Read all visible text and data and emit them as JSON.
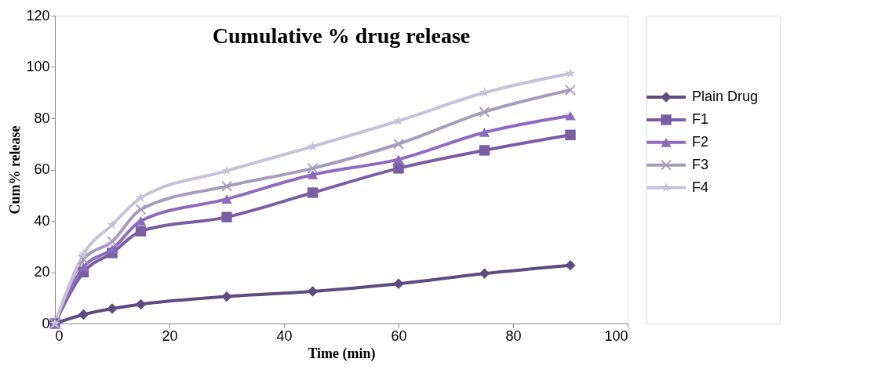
{
  "chart_data": {
    "type": "line",
    "title": "Cumulative % drug release",
    "xlabel": "Time (min)",
    "ylabel": "Cum% release",
    "x": [
      0,
      5,
      10,
      15,
      30,
      45,
      60,
      75,
      90
    ],
    "series": [
      {
        "name": "Plain Drug",
        "color": "#5e4b80",
        "marker": "diamond",
        "values": [
          0,
          3.5,
          5.8,
          7.5,
          10.5,
          12.5,
          15.5,
          19.5,
          22.7
        ]
      },
      {
        "name": "F1",
        "color": "#7a5ea3",
        "marker": "square",
        "values": [
          0,
          20,
          27.5,
          36,
          41.5,
          51,
          60.5,
          67.5,
          73.5
        ]
      },
      {
        "name": "F2",
        "color": "#8d6cc0",
        "marker": "triangle",
        "values": [
          0,
          22,
          29,
          40,
          48.5,
          58,
          64,
          74.5,
          81
        ]
      },
      {
        "name": "F3",
        "color": "#a69cbc",
        "marker": "cross",
        "values": [
          0,
          25,
          32,
          44.5,
          53.5,
          60.5,
          70,
          82.5,
          91
        ]
      },
      {
        "name": "F4",
        "color": "#c8c2d9",
        "marker": "star",
        "values": [
          0,
          27,
          38.5,
          49,
          59.5,
          69,
          79,
          90,
          97.5
        ]
      }
    ],
    "xlim": [
      0,
      100
    ],
    "xticks": [
      0,
      20,
      40,
      60,
      80,
      100
    ],
    "ylim": [
      0,
      120
    ],
    "yticks": [
      0,
      20,
      40,
      60,
      80,
      100,
      120
    ],
    "grid": false,
    "legend": "right",
    "line_style": "solid"
  }
}
